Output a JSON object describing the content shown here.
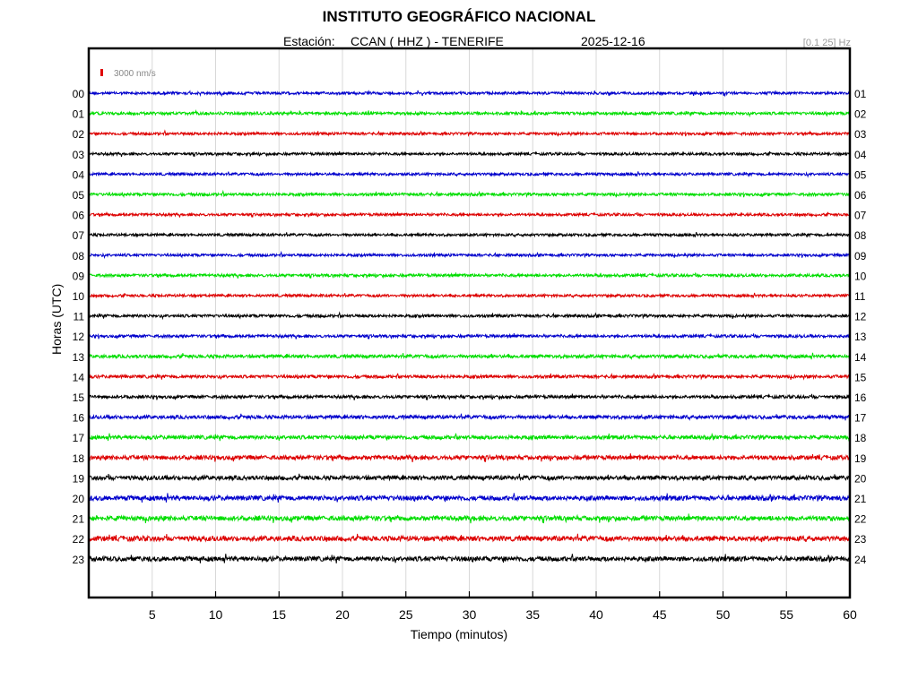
{
  "header": {
    "title": "INSTITUTO GEOGRÁFICO NACIONAL",
    "station_label": "Estación:",
    "station_name": "CCAN ( HHZ ) - TENERIFE",
    "date": "2025-12-16",
    "band": "[0.1 25] Hz"
  },
  "chart_data": {
    "type": "line",
    "title": "INSTITUTO GEOGRÁFICO NACIONAL",
    "xlabel": "Tiempo (minutos)",
    "ylabel": "Horas (UTC)",
    "xlim": [
      0,
      60
    ],
    "x_ticks": [
      5,
      10,
      15,
      20,
      25,
      30,
      35,
      40,
      45,
      50,
      55,
      60
    ],
    "grid": true,
    "scale_bar": {
      "label": "3000 nm/s",
      "color": "#e00000"
    },
    "left_hour_labels": [
      "00",
      "01",
      "02",
      "03",
      "04",
      "05",
      "06",
      "07",
      "08",
      "09",
      "10",
      "11",
      "12",
      "13",
      "14",
      "15",
      "16",
      "17",
      "18",
      "19",
      "20",
      "21",
      "22",
      "23"
    ],
    "right_hour_labels": [
      "01",
      "02",
      "03",
      "04",
      "05",
      "06",
      "07",
      "08",
      "09",
      "10",
      "11",
      "12",
      "13",
      "14",
      "15",
      "16",
      "17",
      "18",
      "19",
      "20",
      "21",
      "22",
      "23",
      "24"
    ],
    "trace_colors": [
      "#0000cc",
      "#00dd00",
      "#dd0000",
      "#000000"
    ],
    "trace_amplitude_relative": [
      0.55,
      0.6,
      0.55,
      0.55,
      0.55,
      0.6,
      0.55,
      0.55,
      0.55,
      0.6,
      0.55,
      0.6,
      0.6,
      0.7,
      0.65,
      0.65,
      0.75,
      0.8,
      0.9,
      0.9,
      1.0,
      1.0,
      1.05,
      1.0
    ]
  }
}
